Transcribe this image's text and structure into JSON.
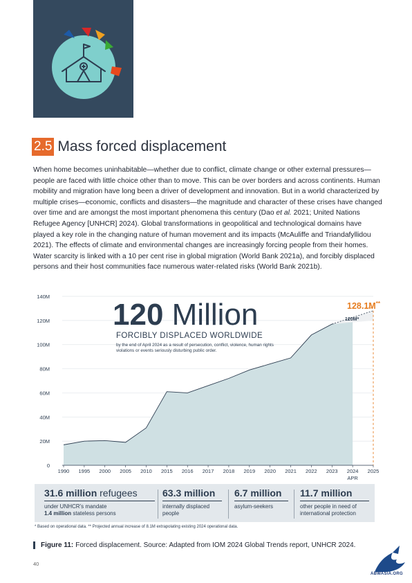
{
  "section": {
    "number": "2.5",
    "title": "Mass forced displacement"
  },
  "body_html_parts": [
    "When home becomes uninhabitable—whether due to conflict, climate change or other external pressures—people are faced with little choice other than to move. This can be over borders and across continents. Human mobility and migration have long been a driver of development and innovation. But in a world characterized by multiple crises—economic, conflicts and disasters—the magnitude and character of these crises have changed over time and are amongst the most important phenomena this century (Dao ",
    "et al.",
    " 2021; United Nations Refugee Agency [UNHCR] 2024). Global transformations in geopolitical and technological domains have played a key role in the changing nature of human movement and its impacts (McAuliffe and Triandafyllidou 2021). The effects of climate and environmental changes are increasingly forcing people from their homes. Water scarcity is linked with a 10 per cent rise in global migration (World Bank 2021a), and forcibly displaced persons and their host communities face numerous water-related risks (World Bank 2021b)."
  ],
  "headline": {
    "number": "120",
    "word": "Million",
    "subtitle": "FORCIBLY DISPLACED WORLDWIDE",
    "description": "by the end of April 2024 as a result of persecution, conflict, violence, human rights violations or events seriously disturbing public order."
  },
  "callouts": {
    "projected": "128.1M",
    "projected_mark": "**",
    "current": "120M*"
  },
  "chart_data": {
    "type": "area",
    "title": "",
    "xlabel": "",
    "ylabel": "",
    "x_ticks": [
      "1990",
      "1995",
      "2000",
      "2005",
      "2010",
      "2015",
      "2016",
      "2017",
      "2018",
      "2019",
      "2020",
      "2021",
      "2022",
      "2023",
      "2024",
      "2025"
    ],
    "x_tick_sub": {
      "2024": "APR"
    },
    "y_ticks": [
      "0",
      "20M",
      "40M",
      "60M",
      "80M",
      "100M",
      "120M",
      "140M"
    ],
    "ylim": [
      0,
      140
    ],
    "series": [
      {
        "x": [
          "1990",
          "1995",
          "2000",
          "2005",
          "2010",
          "2015",
          "2016",
          "2017",
          "2018",
          "2019",
          "2020",
          "2021",
          "2022",
          "2023",
          "2024"
        ],
        "values": [
          17,
          20,
          20.5,
          19,
          31,
          61,
          60,
          66,
          72,
          79,
          84,
          89,
          108,
          117,
          120
        ]
      }
    ],
    "projection": {
      "from": "2023",
      "to": "2025",
      "values": [
        117,
        128.1
      ]
    },
    "colors": {
      "area": "#cfe0e3",
      "line": "#2d3d50",
      "projection": "#e67e22",
      "grid": "#e2e6ea"
    }
  },
  "stats": [
    {
      "value": "31.6 million",
      "unit": "refugees",
      "line1": "under UNHCR's mandate",
      "line2_bold": "1.4 million",
      "line2_rest": " stateless persons"
    },
    {
      "value": "63.3 million",
      "unit": "",
      "line1": "internally displaced",
      "line2_bold": "",
      "line2_rest": "people"
    },
    {
      "value": "6.7 million",
      "unit": "",
      "line1": "asylum-seekers",
      "line2_bold": "",
      "line2_rest": ""
    },
    {
      "value": "11.7 million",
      "unit": "",
      "line1": "other people in need of",
      "line2_bold": "",
      "line2_rest": "international protection"
    }
  ],
  "footnote": "* Based on operational data. ** Projected annual increase of 8.1M extrapolating existing 2024 operational data.",
  "caption": {
    "label": "Figure 11:",
    "text": "Forced displacement. Source: Adapted from IOM 2024 Global Trends report, UNHCR 2024."
  },
  "page_number": "40",
  "watermark": "ABWASIA.ORG",
  "colors": {
    "accent": "#e66a2c",
    "navy": "#34495e",
    "text": "#2d3d50"
  },
  "icon": "tent-shelter-icon"
}
